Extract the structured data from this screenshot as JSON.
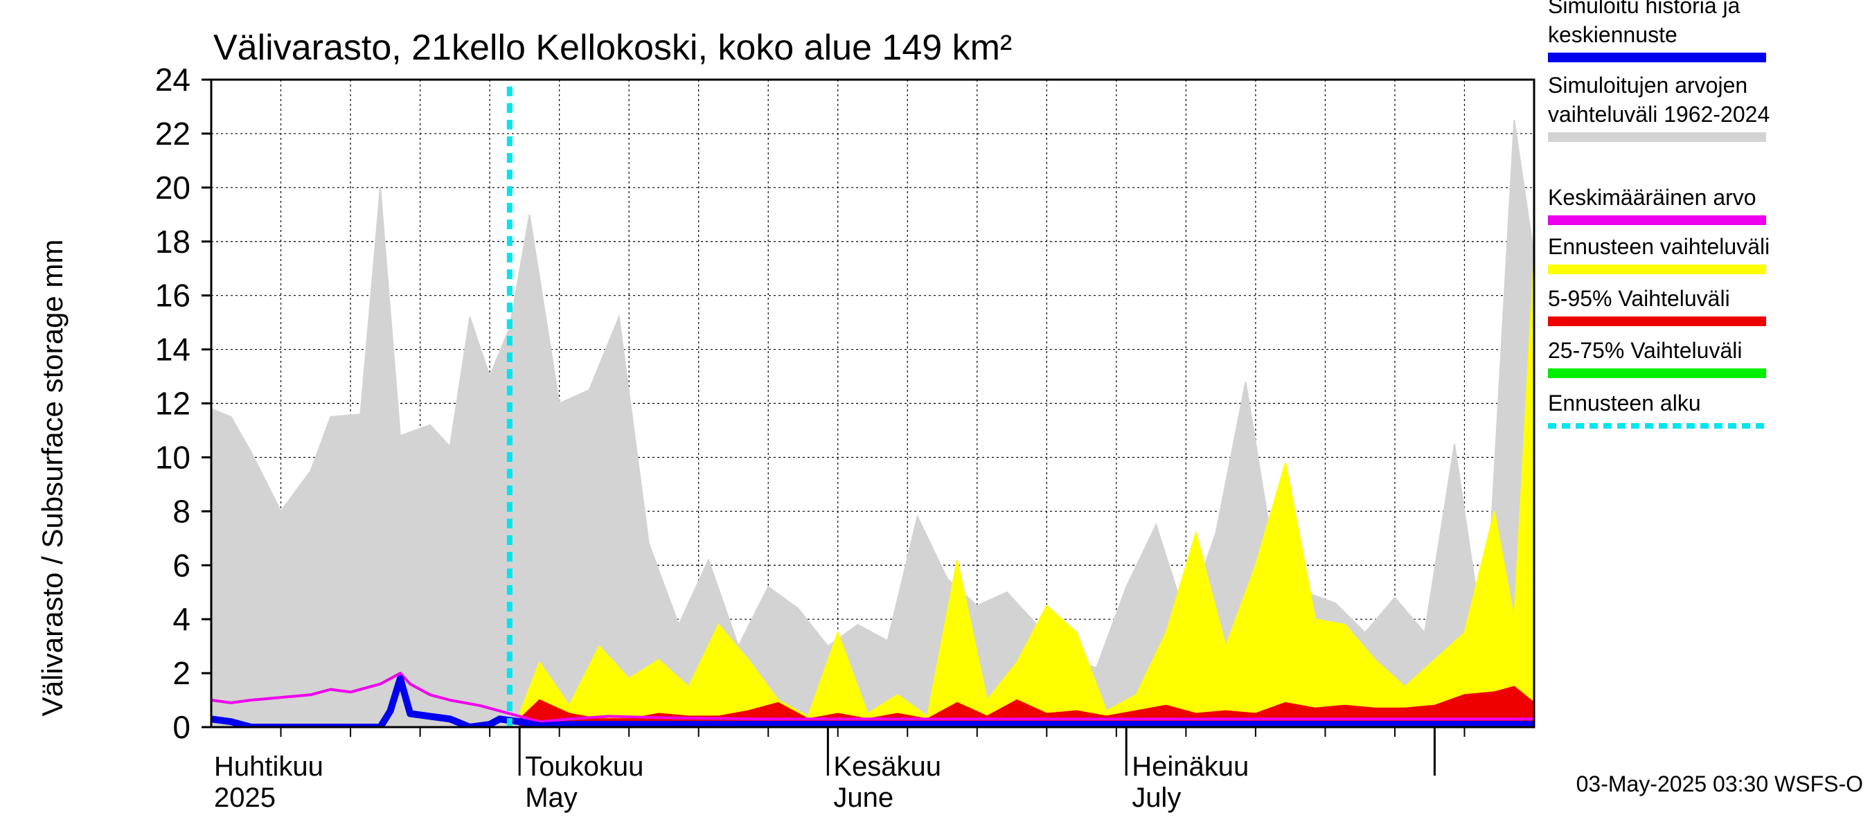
{
  "chart_data": {
    "type": "area",
    "title": "Välivarasto, 21kello Kellokoski, koko alue 149 km²",
    "ylabel": "Välivarasto / Subsurface storage  mm",
    "xlabel": "",
    "ylim": [
      0,
      24
    ],
    "yticks": [
      0,
      2,
      4,
      6,
      8,
      10,
      12,
      14,
      16,
      18,
      20,
      22,
      24
    ],
    "x_range": [
      "2025-03-31",
      "2025-08-11"
    ],
    "grid": true,
    "legend_placement": "right",
    "month_labels": [
      {
        "date": "2025-04-01",
        "line1": "Huhtikuu",
        "line2": "2025"
      },
      {
        "date": "2025-05-01",
        "line1": "Toukokuu",
        "line2": "May"
      },
      {
        "date": "2025-06-01",
        "line1": "Kesäkuu",
        "line2": "June"
      },
      {
        "date": "2025-07-01",
        "line1": "Heinäkuu",
        "line2": "July"
      }
    ],
    "forecast_start": "2025-04-30",
    "legend": [
      {
        "label": "Simuloitu historia ja keskiennuste",
        "color": "#0000ee",
        "style": "solid"
      },
      {
        "label": "Simuloitujen arvojen vaihteluväli 1962-2024",
        "color": "#d3d3d3",
        "style": "solid"
      },
      {
        "label": "Keskimääräinen arvo",
        "color": "#ee00ee",
        "style": "solid"
      },
      {
        "label": "Ennusteen vaihteluväli",
        "color": "#ffff00",
        "style": "solid"
      },
      {
        "label": "5-95% Vaihteluväli",
        "color": "#ee0000",
        "style": "solid"
      },
      {
        "label": "25-75% Vaihteluväli",
        "color": "#00ee00",
        "style": "solid"
      },
      {
        "label": "Ennusteen alku",
        "color": "#00e5ee",
        "style": "dashed"
      }
    ],
    "series": [
      {
        "name": "Simuloitujen arvojen vaihteluväli 1962-2024",
        "color": "#d3d3d3",
        "x": [
          "2025-03-31",
          "2025-04-02",
          "2025-04-04",
          "2025-04-07",
          "2025-04-10",
          "2025-04-12",
          "2025-04-15",
          "2025-04-17",
          "2025-04-19",
          "2025-04-22",
          "2025-04-24",
          "2025-04-26",
          "2025-04-28",
          "2025-04-30",
          "2025-05-02",
          "2025-05-05",
          "2025-05-08",
          "2025-05-11",
          "2025-05-14",
          "2025-05-17",
          "2025-05-20",
          "2025-05-23",
          "2025-05-26",
          "2025-05-29",
          "2025-06-01",
          "2025-06-04",
          "2025-06-07",
          "2025-06-10",
          "2025-06-13",
          "2025-06-16",
          "2025-06-19",
          "2025-06-22",
          "2025-06-25",
          "2025-06-28",
          "2025-07-01",
          "2025-07-04",
          "2025-07-07",
          "2025-07-10",
          "2025-07-13",
          "2025-07-16",
          "2025-07-19",
          "2025-07-22",
          "2025-07-25",
          "2025-07-28",
          "2025-07-31",
          "2025-08-03",
          "2025-08-06",
          "2025-08-09",
          "2025-08-11"
        ],
        "upper": [
          11.8,
          11.5,
          10.2,
          8.0,
          9.5,
          11.5,
          11.6,
          20.0,
          10.8,
          11.2,
          10.4,
          15.2,
          13.0,
          14.8,
          19.0,
          12.0,
          12.5,
          15.2,
          6.8,
          3.8,
          6.2,
          3.0,
          5.2,
          4.4,
          3.0,
          3.8,
          3.2,
          7.8,
          5.5,
          4.5,
          5.0,
          3.8,
          2.5,
          2.2,
          5.2,
          7.5,
          4.0,
          7.2,
          12.8,
          6.0,
          5.0,
          4.6,
          3.5,
          4.8,
          3.5,
          10.5,
          3.0,
          22.5,
          17.5
        ],
        "lower": [
          0,
          0,
          0,
          0,
          0,
          0,
          0,
          0,
          0,
          0,
          0,
          0,
          0,
          0,
          0,
          0,
          0,
          0,
          0,
          0,
          0,
          0,
          0,
          0,
          0,
          0,
          0,
          0,
          0,
          0,
          0,
          0,
          0,
          0,
          0,
          0,
          0,
          0,
          0,
          0,
          0,
          0,
          0,
          0,
          0,
          0,
          0,
          0,
          0
        ]
      },
      {
        "name": "Ennusteen vaihteluväli",
        "color": "#ffff00",
        "x": [
          "2025-05-01",
          "2025-05-03",
          "2025-05-06",
          "2025-05-09",
          "2025-05-12",
          "2025-05-15",
          "2025-05-18",
          "2025-05-21",
          "2025-05-24",
          "2025-05-27",
          "2025-05-30",
          "2025-06-02",
          "2025-06-05",
          "2025-06-08",
          "2025-06-11",
          "2025-06-14",
          "2025-06-17",
          "2025-06-20",
          "2025-06-23",
          "2025-06-26",
          "2025-06-29",
          "2025-07-02",
          "2025-07-05",
          "2025-07-08",
          "2025-07-11",
          "2025-07-14",
          "2025-07-17",
          "2025-07-20",
          "2025-07-23",
          "2025-07-26",
          "2025-07-29",
          "2025-08-01",
          "2025-08-04",
          "2025-08-07",
          "2025-08-09",
          "2025-08-11"
        ],
        "upper": [
          0.5,
          2.4,
          0.8,
          3.0,
          1.8,
          2.5,
          1.5,
          3.8,
          2.5,
          1.0,
          0.4,
          3.5,
          0.5,
          1.2,
          0.4,
          6.2,
          1.0,
          2.4,
          4.5,
          3.5,
          0.6,
          1.2,
          3.5,
          7.2,
          3.0,
          6.0,
          9.8,
          4.0,
          3.8,
          2.5,
          1.5,
          2.5,
          3.5,
          8.0,
          4.0,
          17.5
        ],
        "lower": [
          0,
          0,
          0,
          0,
          0,
          0,
          0,
          0,
          0,
          0,
          0,
          0,
          0,
          0,
          0,
          0,
          0,
          0,
          0,
          0,
          0,
          0,
          0,
          0,
          0,
          0,
          0,
          0,
          0,
          0,
          0,
          0,
          0,
          0,
          0,
          0
        ]
      },
      {
        "name": "5-95% Vaihteluväli",
        "color": "#ee0000",
        "x": [
          "2025-05-01",
          "2025-05-03",
          "2025-05-06",
          "2025-05-09",
          "2025-05-12",
          "2025-05-15",
          "2025-05-18",
          "2025-05-21",
          "2025-05-24",
          "2025-05-27",
          "2025-05-30",
          "2025-06-02",
          "2025-06-05",
          "2025-06-08",
          "2025-06-11",
          "2025-06-14",
          "2025-06-17",
          "2025-06-20",
          "2025-06-23",
          "2025-06-26",
          "2025-06-29",
          "2025-07-02",
          "2025-07-05",
          "2025-07-08",
          "2025-07-11",
          "2025-07-14",
          "2025-07-17",
          "2025-07-20",
          "2025-07-23",
          "2025-07-26",
          "2025-07-29",
          "2025-08-01",
          "2025-08-04",
          "2025-08-07",
          "2025-08-09",
          "2025-08-11"
        ],
        "upper": [
          0.3,
          1.0,
          0.5,
          0.3,
          0.3,
          0.5,
          0.4,
          0.4,
          0.6,
          0.9,
          0.3,
          0.5,
          0.3,
          0.5,
          0.3,
          0.9,
          0.4,
          1.0,
          0.5,
          0.6,
          0.4,
          0.6,
          0.8,
          0.5,
          0.6,
          0.5,
          0.9,
          0.7,
          0.8,
          0.7,
          0.7,
          0.8,
          1.2,
          1.3,
          1.5,
          0.9
        ],
        "lower": [
          0.05,
          0.1,
          0.1,
          0.1,
          0.1,
          0.1,
          0.1,
          0.1,
          0.1,
          0.1,
          0.1,
          0.1,
          0.1,
          0.1,
          0.1,
          0.1,
          0.1,
          0.1,
          0.1,
          0.1,
          0.1,
          0.1,
          0.1,
          0.1,
          0.1,
          0.1,
          0.1,
          0.1,
          0.1,
          0.1,
          0.1,
          0.1,
          0.1,
          0.1,
          0.1,
          0.1
        ]
      },
      {
        "name": "25-75% Vaihteluväli",
        "color": "#00ee00",
        "x": [
          "2025-05-01",
          "2025-08-11"
        ],
        "upper": [
          0.15,
          0.15
        ],
        "lower": [
          0.1,
          0.1
        ]
      },
      {
        "name": "Keskimääräinen arvo",
        "color": "#ee00ee",
        "x": [
          "2025-03-31",
          "2025-04-02",
          "2025-04-04",
          "2025-04-07",
          "2025-04-10",
          "2025-04-12",
          "2025-04-14",
          "2025-04-17",
          "2025-04-19",
          "2025-04-20",
          "2025-04-22",
          "2025-04-24",
          "2025-04-27",
          "2025-04-30",
          "2025-05-03",
          "2025-05-06",
          "2025-05-10",
          "2025-05-15",
          "2025-05-25",
          "2025-06-10",
          "2025-06-25",
          "2025-07-10",
          "2025-07-25",
          "2025-08-11"
        ],
        "values": [
          1.0,
          0.9,
          1.0,
          1.1,
          1.2,
          1.4,
          1.3,
          1.6,
          2.0,
          1.6,
          1.2,
          1.0,
          0.8,
          0.5,
          0.2,
          0.3,
          0.4,
          0.35,
          0.3,
          0.3,
          0.3,
          0.3,
          0.3,
          0.3
        ]
      },
      {
        "name": "Simuloitu historia ja keskiennuste",
        "color": "#0000ee",
        "x": [
          "2025-03-31",
          "2025-04-02",
          "2025-04-04",
          "2025-04-07",
          "2025-04-10",
          "2025-04-13",
          "2025-04-15",
          "2025-04-17",
          "2025-04-18",
          "2025-04-19",
          "2025-04-20",
          "2025-04-22",
          "2025-04-24",
          "2025-04-26",
          "2025-04-28",
          "2025-04-29",
          "2025-05-01",
          "2025-05-03",
          "2025-05-06",
          "2025-05-10",
          "2025-05-20",
          "2025-06-01",
          "2025-06-15",
          "2025-07-01",
          "2025-07-15",
          "2025-08-01",
          "2025-08-11"
        ],
        "values": [
          0.3,
          0.2,
          0.0,
          0.0,
          0.0,
          0.0,
          0.0,
          0.0,
          0.6,
          1.8,
          0.5,
          0.4,
          0.3,
          0.0,
          0.1,
          0.3,
          0.2,
          0.05,
          0.1,
          0.1,
          0.1,
          0.1,
          0.1,
          0.1,
          0.1,
          0.1,
          0.1
        ]
      }
    ]
  },
  "footer": {
    "timestamp": "03-May-2025 03:30 WSFS-O"
  }
}
